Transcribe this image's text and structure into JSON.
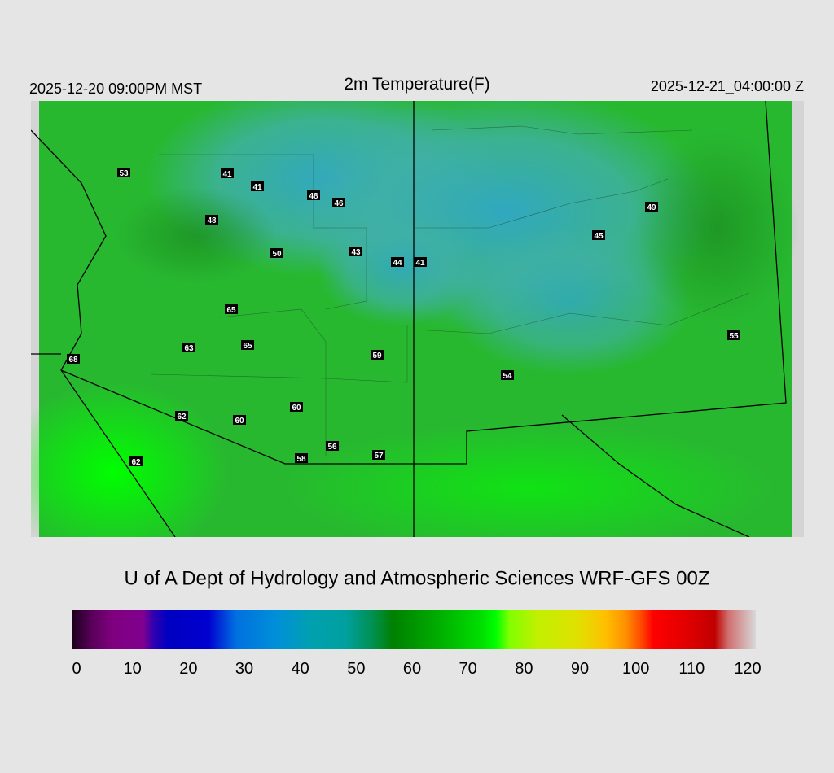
{
  "header": {
    "left": "2025-12-20 09:00PM MST",
    "title": "2m Temperature(F)",
    "right": "2025-12-21_04:00:00 Z"
  },
  "stations": [
    53,
    41,
    41,
    48,
    46,
    48,
    50,
    43,
    44,
    41,
    49,
    45,
    65,
    63,
    65,
    59,
    68,
    54,
    55,
    60,
    62,
    60,
    56,
    58,
    57,
    62
  ],
  "footer": "U of A Dept of Hydrology and Atmospheric Sciences WRF-GFS 00Z",
  "colorbar": {
    "range": [
      0,
      120
    ],
    "ticks": [
      0,
      10,
      20,
      30,
      40,
      50,
      60,
      70,
      80,
      90,
      100,
      110,
      120
    ]
  }
}
